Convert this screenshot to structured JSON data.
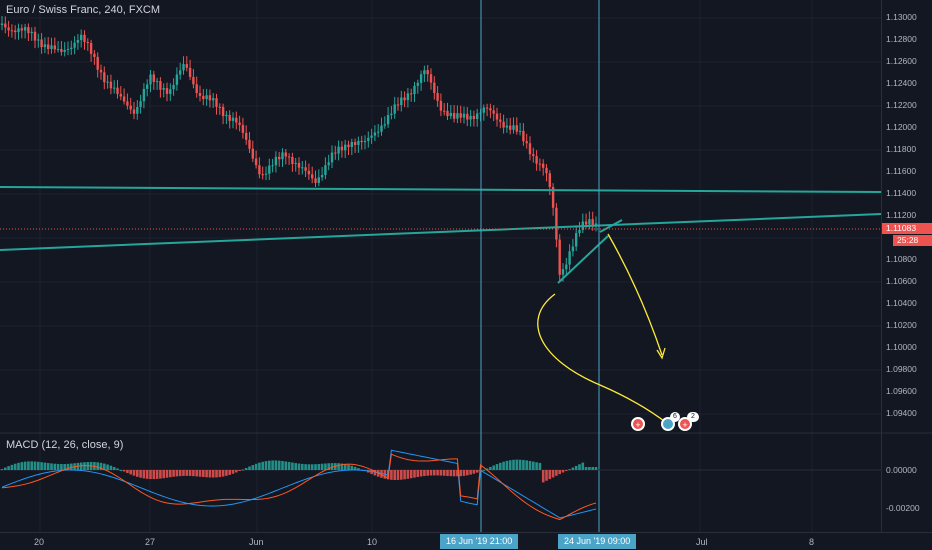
{
  "chart": {
    "title": "Euro / Swiss Franc, 240, FXCM",
    "macd_title": "MACD (12, 26, close, 9)",
    "current_price": "1.11083",
    "countdown": "25:28",
    "price_ticks": [
      "1.13000",
      "1.12800",
      "1.12600",
      "1.12400",
      "1.12200",
      "1.12000",
      "1.11800",
      "1.11600",
      "1.11400",
      "1.11200",
      "1.10800",
      "1.10600",
      "1.10400",
      "1.10200",
      "1.10000",
      "1.09800",
      "1.09600",
      "1.09400"
    ],
    "macd_ticks": [
      "0.00000",
      "-0.00200"
    ],
    "time_labels": [
      "20",
      "27",
      "Jun",
      "10",
      "Jul",
      "8"
    ],
    "crosshair_labels": [
      "16 Jun '19  21:00",
      "24 Jun '19  09:00"
    ],
    "event_badges": [
      "6",
      "2"
    ],
    "colors": {
      "up": "#26a69a",
      "down": "#ef5350",
      "trendline": "#26a69a",
      "arrow": "#ffeb3b",
      "crosshair": "#4ba3c7",
      "macd": "#2196f3",
      "signal": "#ff5722"
    }
  }
}
